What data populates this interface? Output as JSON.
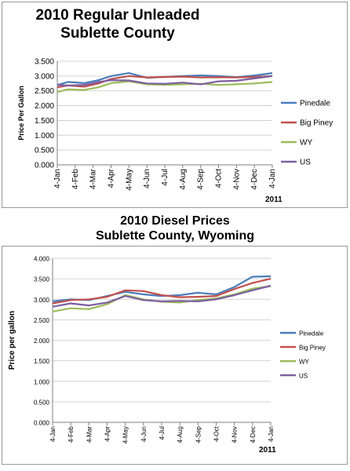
{
  "chart_data": [
    {
      "type": "line",
      "title": "2010 Regular Unleaded",
      "subtitle": "Sublette County",
      "ylabel": "Price Per Gallon",
      "xlabel": "",
      "year_label": "2011",
      "ylim": [
        0,
        3.5
      ],
      "yticks": [
        "0.000",
        "0.500",
        "1.000",
        "1.500",
        "2.000",
        "2.500",
        "3.000",
        "3.500"
      ],
      "categories": [
        "4-Jan",
        "4-Feb",
        "4-Mar",
        "4-Apr",
        "4-May",
        "4-Jun",
        "4-Jul",
        "4-Aug",
        "4-Sep",
        "4-Oct",
        "4-Nov",
        "4-Dec",
        "4-Jan"
      ],
      "grid": true,
      "legend_position": "right",
      "series": [
        {
          "name": "Pinedale",
          "color": "#4a7ebb",
          "values": [
            2.7,
            2.8,
            2.76,
            2.86,
            3.0,
            3.1,
            2.94,
            2.97,
            3.0,
            3.02,
            3.0,
            2.96,
            3.02,
            3.1
          ],
          "x": [
            0,
            0.6,
            1.5,
            2.3,
            3.0,
            4.0,
            5.0,
            6.0,
            7.0,
            8.0,
            9.0,
            10.0,
            11.0,
            12.0
          ]
        },
        {
          "name": "Big Piney",
          "color": "#c0504d",
          "values": [
            2.62,
            2.68,
            2.64,
            2.75,
            2.9,
            3.0,
            2.95,
            2.97,
            2.98,
            2.95,
            2.96,
            2.95,
            2.97,
            3.0
          ],
          "x": [
            0,
            0.6,
            1.5,
            2.3,
            3.0,
            4.0,
            5.0,
            6.0,
            7.0,
            8.0,
            9.0,
            10.0,
            11.0,
            12.0
          ]
        },
        {
          "name": "WY",
          "color": "#9bbb59",
          "values": [
            2.46,
            2.55,
            2.53,
            2.62,
            2.76,
            2.82,
            2.72,
            2.7,
            2.72,
            2.74,
            2.7,
            2.72,
            2.75,
            2.8
          ],
          "x": [
            0,
            0.6,
            1.5,
            2.3,
            3.0,
            4.0,
            5.0,
            6.0,
            7.0,
            8.0,
            9.0,
            10.0,
            11.0,
            12.0
          ]
        },
        {
          "name": "US",
          "color": "#7d60a0",
          "values": [
            2.7,
            2.68,
            2.7,
            2.8,
            2.86,
            2.85,
            2.75,
            2.74,
            2.78,
            2.72,
            2.82,
            2.84,
            2.92,
            3.0
          ],
          "x": [
            0,
            0.6,
            1.5,
            2.3,
            3.0,
            4.0,
            5.0,
            6.0,
            7.0,
            8.0,
            9.0,
            10.0,
            11.0,
            12.0
          ]
        }
      ]
    },
    {
      "type": "line",
      "title": "2010 Diesel Prices",
      "subtitle": "Sublette County, Wyoming",
      "ylabel": "Price per gallon",
      "xlabel": "",
      "year_label": "2011",
      "ylim": [
        0,
        4
      ],
      "yticks": [
        "0.000",
        "0.500",
        "1.000",
        "1.500",
        "2.000",
        "2.500",
        "3.000",
        "3.500",
        "4.000"
      ],
      "categories": [
        "4-Jan",
        "4-Feb",
        "4-Mar",
        "4-Apr",
        "4-May",
        "4-Jun",
        "4-Jul",
        "4-Aug",
        "4-Sep",
        "4-Oct",
        "4-Nov",
        "4-Dec",
        "4-Jan"
      ],
      "grid": true,
      "legend_position": "right",
      "series": [
        {
          "name": "Pinedale",
          "color": "#4a7ebb",
          "values": [
            2.95,
            3.0,
            2.98,
            3.08,
            3.18,
            3.12,
            3.08,
            3.1,
            3.16,
            3.12,
            3.3,
            3.55,
            3.56
          ],
          "x": [
            0,
            1,
            2,
            3,
            4,
            5,
            6,
            7,
            8,
            9,
            10,
            11,
            12
          ]
        },
        {
          "name": "Big Piney",
          "color": "#c0504d",
          "values": [
            2.9,
            2.98,
            3.0,
            3.06,
            3.22,
            3.2,
            3.1,
            3.05,
            3.06,
            3.08,
            3.25,
            3.4,
            3.5
          ],
          "x": [
            0,
            1,
            2,
            3,
            4,
            5,
            6,
            7,
            8,
            9,
            10,
            11,
            12
          ]
        },
        {
          "name": "WY",
          "color": "#9bbb59",
          "values": [
            2.7,
            2.78,
            2.76,
            2.88,
            3.1,
            3.0,
            2.94,
            2.92,
            2.98,
            3.02,
            3.12,
            3.26,
            3.32
          ],
          "x": [
            0,
            1,
            2,
            3,
            4,
            5,
            6,
            7,
            8,
            9,
            10,
            11,
            12
          ]
        },
        {
          "name": "US",
          "color": "#7d60a0",
          "values": [
            2.82,
            2.9,
            2.85,
            2.92,
            3.08,
            2.98,
            2.95,
            2.96,
            2.95,
            3.0,
            3.1,
            3.22,
            3.33
          ],
          "x": [
            0,
            1,
            2,
            3,
            4,
            5,
            6,
            7,
            8,
            9,
            10,
            11,
            12
          ]
        }
      ]
    }
  ]
}
